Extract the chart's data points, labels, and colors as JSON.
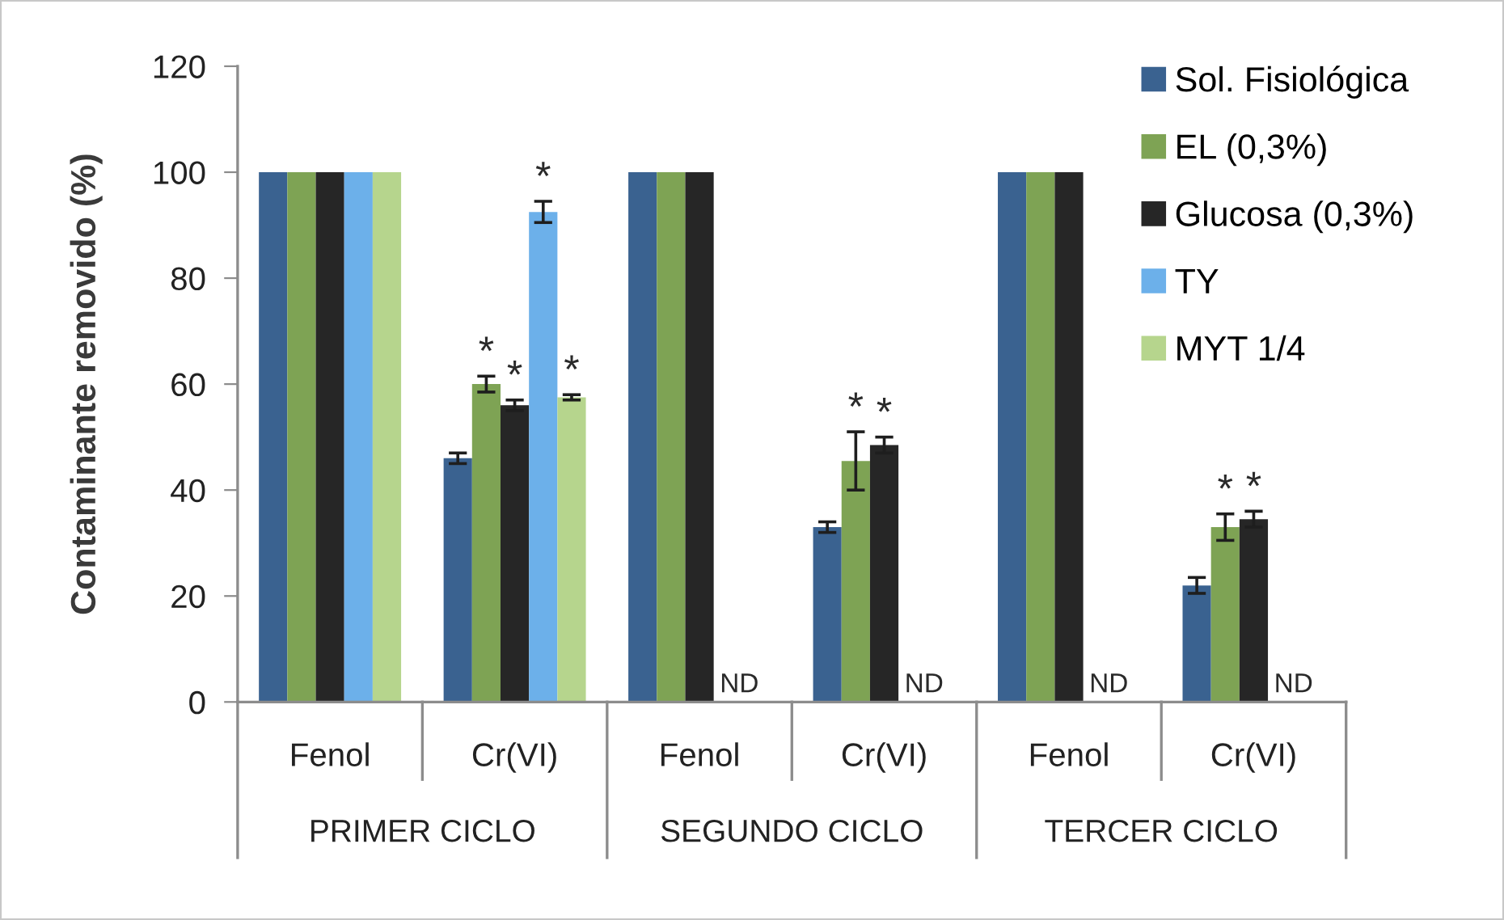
{
  "chart_data": {
    "type": "bar",
    "ylabel": "Contaminante removido (%)",
    "categories": [
      "Fenol",
      "Cr(VI)",
      "Fenol",
      "Cr(VI)",
      "Fenol",
      "Cr(VI)"
    ],
    "annotations": [
      "PRIMER CICLO",
      "SEGUNDO CICLO",
      "TERCER CICLO"
    ],
    "series": [
      {
        "name": "Sol. Fisiológica",
        "color": "#3a6290",
        "values": [
          100,
          46,
          100,
          33,
          100,
          22
        ],
        "errors": [
          null,
          1,
          null,
          1,
          null,
          1.5
        ]
      },
      {
        "name": "EL (0,3%)",
        "color": "#7ea354",
        "values": [
          100,
          60,
          100,
          45.5,
          100,
          33
        ],
        "errors": [
          null,
          1.5,
          null,
          5.5,
          null,
          2.5
        ],
        "value_labels": [
          null,
          "*",
          null,
          "*",
          null,
          "*"
        ]
      },
      {
        "name": "Glucosa (0,3%)",
        "color": "#262626",
        "values": [
          100,
          56,
          100,
          48.5,
          100,
          34.5
        ],
        "errors": [
          null,
          1,
          null,
          1.5,
          null,
          1.5
        ],
        "value_labels": [
          null,
          "*",
          null,
          "*",
          null,
          "*"
        ]
      },
      {
        "name": "TY",
        "color": "#6cb0ea",
        "values": [
          100,
          92.5,
          null,
          null,
          null,
          null
        ],
        "errors": [
          null,
          2,
          null,
          null,
          null,
          null
        ],
        "value_labels": [
          null,
          "*",
          "ND",
          "ND",
          "ND",
          "ND"
        ]
      },
      {
        "name": "MYT 1/4",
        "color": "#b6d58d",
        "values": [
          100,
          57.5,
          null,
          null,
          null,
          null
        ],
        "errors": [
          null,
          0.5,
          null,
          null,
          null,
          null
        ],
        "value_labels": [
          null,
          "*",
          null,
          null,
          null,
          null
        ]
      }
    ],
    "ylim": [
      0,
      120
    ],
    "yticks": [
      0,
      20,
      40,
      60,
      80,
      100,
      120
    ],
    "legend": "top right"
  }
}
